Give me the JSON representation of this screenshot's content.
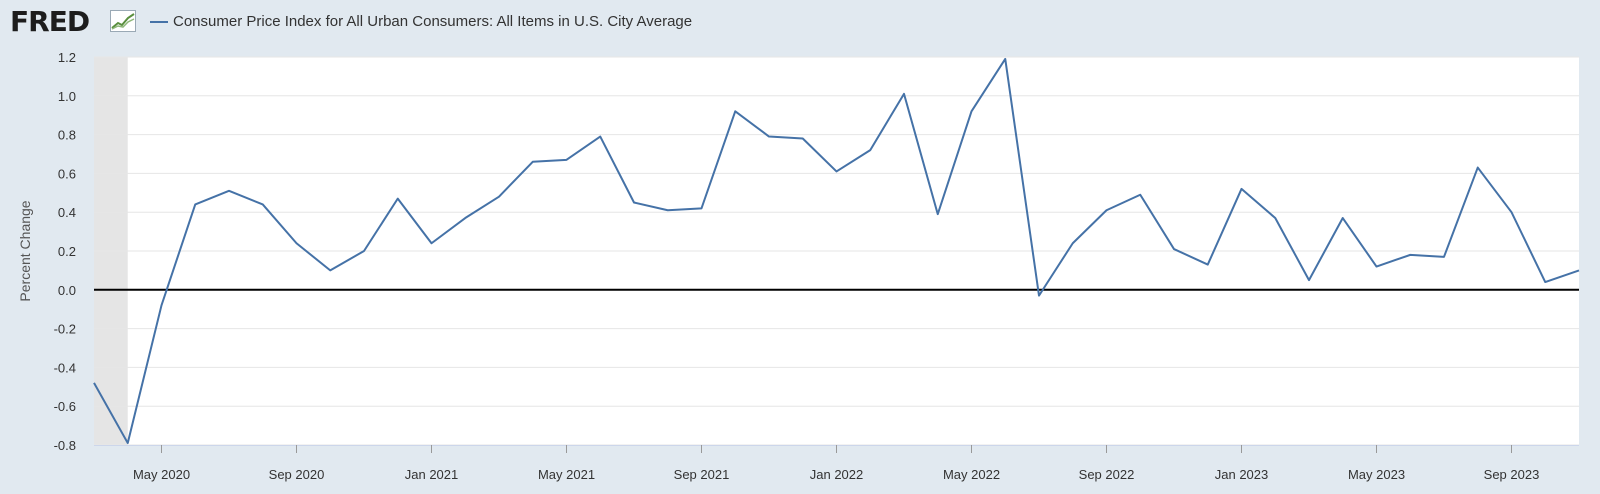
{
  "header": {
    "logo_text": "FRED",
    "logo_mark_icon": "fred-chart-icon",
    "legend_label": "Consumer Price Index for All Urban Consumers: All Items in U.S. City Average"
  },
  "colors": {
    "series": "#4572a7",
    "background": "#e1e9f0",
    "plot": "#ffffff",
    "recession": "#e5e5e5",
    "zero_line": "#000000",
    "grid": "#e6e6e6"
  },
  "chart_data": {
    "type": "line",
    "title": "",
    "xlabel": "",
    "ylabel": "Percent Change",
    "ylim": [
      -0.8,
      1.2
    ],
    "yticks": [
      "1.2",
      "1.0",
      "0.8",
      "0.6",
      "0.4",
      "0.2",
      "0.0",
      "-0.2",
      "-0.4",
      "-0.6",
      "-0.8"
    ],
    "ytick_values": [
      1.2,
      1.0,
      0.8,
      0.6,
      0.4,
      0.2,
      0.0,
      -0.2,
      -0.4,
      -0.6,
      -0.8
    ],
    "xlim": [
      "2020-03",
      "2023-11"
    ],
    "xticks": [
      {
        "label": "May 2020",
        "date": "2020-05"
      },
      {
        "label": "Sep 2020",
        "date": "2020-09"
      },
      {
        "label": "Jan 2021",
        "date": "2021-01"
      },
      {
        "label": "May 2021",
        "date": "2021-05"
      },
      {
        "label": "Sep 2021",
        "date": "2021-09"
      },
      {
        "label": "Jan 2022",
        "date": "2022-01"
      },
      {
        "label": "May 2022",
        "date": "2022-05"
      },
      {
        "label": "Sep 2022",
        "date": "2022-09"
      },
      {
        "label": "Jan 2023",
        "date": "2023-01"
      },
      {
        "label": "May 2023",
        "date": "2023-05"
      },
      {
        "label": "Sep 2023",
        "date": "2023-09"
      }
    ],
    "recession": {
      "start": "2020-03",
      "end": "2020-04"
    },
    "grid": true,
    "zero_line": true,
    "series": [
      {
        "name": "Consumer Price Index for All Urban Consumers: All Items in U.S. City Average",
        "x": [
          "2020-03",
          "2020-04",
          "2020-05",
          "2020-06",
          "2020-07",
          "2020-08",
          "2020-09",
          "2020-10",
          "2020-11",
          "2020-12",
          "2021-01",
          "2021-02",
          "2021-03",
          "2021-04",
          "2021-05",
          "2021-06",
          "2021-07",
          "2021-08",
          "2021-09",
          "2021-10",
          "2021-11",
          "2021-12",
          "2022-01",
          "2022-02",
          "2022-03",
          "2022-04",
          "2022-05",
          "2022-06",
          "2022-07",
          "2022-08",
          "2022-09",
          "2022-10",
          "2022-11",
          "2022-12",
          "2023-01",
          "2023-02",
          "2023-03",
          "2023-04",
          "2023-05",
          "2023-06",
          "2023-07",
          "2023-08",
          "2023-09",
          "2023-10",
          "2023-11"
        ],
        "values": [
          -0.48,
          -0.79,
          -0.08,
          0.44,
          0.51,
          0.44,
          0.24,
          0.1,
          0.2,
          0.47,
          0.24,
          0.37,
          0.48,
          0.66,
          0.67,
          0.79,
          0.45,
          0.41,
          0.42,
          0.92,
          0.79,
          0.78,
          0.61,
          0.72,
          1.01,
          0.39,
          0.92,
          1.19,
          -0.03,
          0.24,
          0.41,
          0.49,
          0.21,
          0.13,
          0.52,
          0.37,
          0.05,
          0.37,
          0.12,
          0.18,
          0.17,
          0.63,
          0.4,
          0.04,
          0.1
        ]
      }
    ]
  }
}
